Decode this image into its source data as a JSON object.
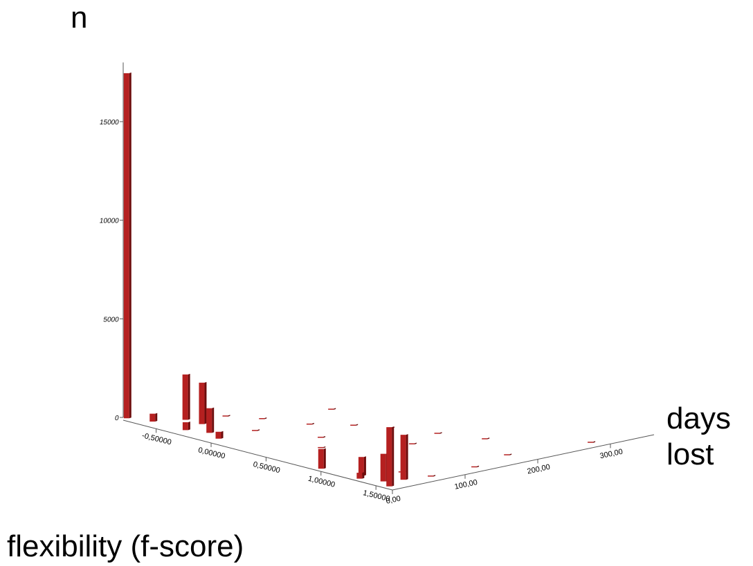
{
  "chart_data": {
    "type": "bar3d",
    "y_label": "n",
    "x_label": "flexibility (f-score)",
    "z_label": "days lost",
    "color": "#b52020",
    "xlim": [
      -0.8,
      1.65
    ],
    "zlim": [
      0,
      360
    ],
    "ylim": [
      0,
      18000
    ],
    "yticks": [
      0,
      5000,
      10000,
      15000
    ],
    "xticks": [
      {
        "value": -0.5,
        "label": "-0,50000"
      },
      {
        "value": 0,
        "label": "0,00000"
      },
      {
        "value": 0.5,
        "label": "0,50000"
      },
      {
        "value": 1,
        "label": "1,00000"
      },
      {
        "value": 1.5,
        "label": "1,50000"
      }
    ],
    "zticks": [
      {
        "value": 0,
        "label": "0,00"
      },
      {
        "value": 100,
        "label": "100,00"
      },
      {
        "value": 200,
        "label": "200,00"
      },
      {
        "value": 300,
        "label": "300,00"
      }
    ],
    "flexibility": [
      -0.77,
      -0.6,
      -0.5,
      -0.35,
      -0.3,
      -0.15,
      0.0,
      1.0,
      1.3,
      1.35,
      1.5,
      1.55,
      1.62,
      -0.4,
      -0.2,
      0.1,
      0.3,
      0.5,
      0.8,
      1.1,
      0.0,
      0.4,
      0.9,
      1.4,
      1.6,
      1.6,
      1.5,
      1.6,
      -0.1,
      0.6
    ],
    "days": [
      0,
      10,
      40,
      40,
      10,
      20,
      10,
      0,
      10,
      0,
      10,
      30,
      0,
      80,
      100,
      120,
      150,
      170,
      190,
      210,
      60,
      90,
      140,
      50,
      60,
      120,
      180,
      280,
      180,
      60
    ],
    "n": [
      17500,
      400,
      2300,
      2100,
      400,
      1250,
      350,
      1000,
      950,
      300,
      1400,
      2280,
      3000,
      30,
      30,
      30,
      30,
      30,
      30,
      30,
      30,
      30,
      30,
      30,
      30,
      30,
      30,
      30,
      30,
      30
    ]
  }
}
